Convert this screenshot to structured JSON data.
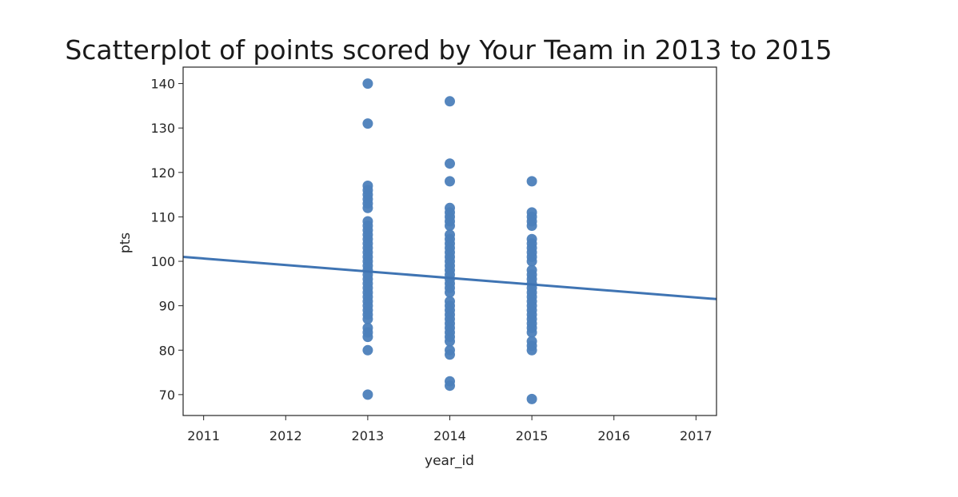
{
  "chart_data": {
    "type": "scatter",
    "title": "Scatterplot of points scored by Your Team in 2013 to 2015",
    "xlabel": "year_id",
    "ylabel": "pts",
    "xlim": [
      2010.75,
      2017.25
    ],
    "ylim": [
      65.3,
      143.7
    ],
    "x_ticks": [
      2011,
      2012,
      2013,
      2014,
      2015,
      2016,
      2017
    ],
    "y_ticks": [
      70,
      80,
      90,
      100,
      110,
      120,
      130,
      140
    ],
    "grid": false,
    "legend": "none",
    "point_color": "#4c7fba",
    "line_color": "#3f74b3",
    "series": [
      {
        "points": [
          [
            2013,
            140
          ],
          [
            2013,
            131
          ],
          [
            2013,
            117
          ],
          [
            2013,
            116
          ],
          [
            2013,
            115
          ],
          [
            2013,
            114
          ],
          [
            2013,
            113
          ],
          [
            2013,
            112
          ],
          [
            2013,
            109
          ],
          [
            2013,
            108
          ],
          [
            2013,
            107
          ],
          [
            2013,
            106
          ],
          [
            2013,
            105
          ],
          [
            2013,
            104
          ],
          [
            2013,
            103
          ],
          [
            2013,
            102
          ],
          [
            2013,
            101
          ],
          [
            2013,
            100
          ],
          [
            2013,
            99
          ],
          [
            2013,
            98
          ],
          [
            2013,
            97
          ],
          [
            2013,
            96
          ],
          [
            2013,
            95
          ],
          [
            2013,
            94
          ],
          [
            2013,
            93
          ],
          [
            2013,
            92
          ],
          [
            2013,
            91
          ],
          [
            2013,
            90
          ],
          [
            2013,
            89
          ],
          [
            2013,
            88
          ],
          [
            2013,
            87
          ],
          [
            2013,
            85
          ],
          [
            2013,
            84
          ],
          [
            2013,
            83
          ],
          [
            2013,
            80
          ],
          [
            2013,
            70
          ],
          [
            2014,
            136
          ],
          [
            2014,
            122
          ],
          [
            2014,
            118
          ],
          [
            2014,
            112
          ],
          [
            2014,
            111
          ],
          [
            2014,
            110
          ],
          [
            2014,
            109
          ],
          [
            2014,
            108
          ],
          [
            2014,
            106
          ],
          [
            2014,
            105
          ],
          [
            2014,
            104
          ],
          [
            2014,
            103
          ],
          [
            2014,
            102
          ],
          [
            2014,
            101
          ],
          [
            2014,
            100
          ],
          [
            2014,
            99
          ],
          [
            2014,
            98
          ],
          [
            2014,
            97
          ],
          [
            2014,
            96
          ],
          [
            2014,
            95
          ],
          [
            2014,
            94
          ],
          [
            2014,
            93
          ],
          [
            2014,
            91
          ],
          [
            2014,
            90
          ],
          [
            2014,
            89
          ],
          [
            2014,
            88
          ],
          [
            2014,
            87
          ],
          [
            2014,
            86
          ],
          [
            2014,
            85
          ],
          [
            2014,
            84
          ],
          [
            2014,
            83
          ],
          [
            2014,
            82
          ],
          [
            2014,
            80
          ],
          [
            2014,
            79
          ],
          [
            2014,
            73
          ],
          [
            2014,
            72
          ],
          [
            2015,
            118
          ],
          [
            2015,
            111
          ],
          [
            2015,
            110
          ],
          [
            2015,
            109
          ],
          [
            2015,
            108
          ],
          [
            2015,
            105
          ],
          [
            2015,
            104
          ],
          [
            2015,
            103
          ],
          [
            2015,
            102
          ],
          [
            2015,
            101
          ],
          [
            2015,
            100
          ],
          [
            2015,
            98
          ],
          [
            2015,
            97
          ],
          [
            2015,
            96
          ],
          [
            2015,
            95
          ],
          [
            2015,
            94
          ],
          [
            2015,
            93
          ],
          [
            2015,
            92
          ],
          [
            2015,
            91
          ],
          [
            2015,
            90
          ],
          [
            2015,
            89
          ],
          [
            2015,
            88
          ],
          [
            2015,
            87
          ],
          [
            2015,
            86
          ],
          [
            2015,
            85
          ],
          [
            2015,
            84
          ],
          [
            2015,
            82
          ],
          [
            2015,
            81
          ],
          [
            2015,
            80
          ],
          [
            2015,
            69
          ]
        ]
      }
    ],
    "regression_line": {
      "x": [
        2010.75,
        2017.25
      ],
      "y": [
        101.0,
        91.5
      ]
    }
  }
}
